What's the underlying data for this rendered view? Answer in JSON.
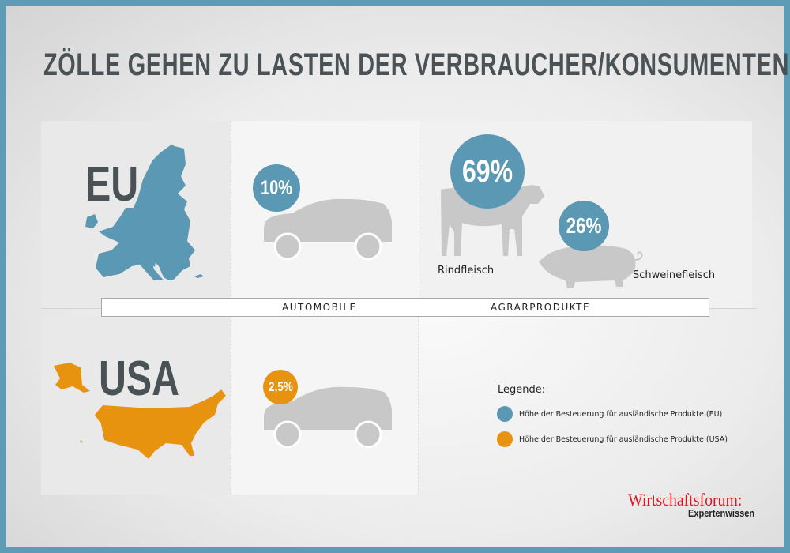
{
  "title": "ZÖLLE GEHEN ZU LASTEN DER VERBRAUCHER/KONSUMENTEN",
  "regions": {
    "eu": "EU",
    "usa": "USA"
  },
  "categories": {
    "auto": "AUTOMOBILE",
    "agrar": "AGRARPRODUKTE"
  },
  "values": {
    "eu_auto": "10%",
    "eu_beef": "69%",
    "eu_pork": "26%",
    "usa_auto": "2,5%"
  },
  "products": {
    "beef": "Rindfleisch",
    "pork": "Schweinefleisch"
  },
  "legend": {
    "title": "Legende:",
    "items": [
      {
        "label": "Höhe der Besteuerung für ausländische Produkte (EU)",
        "color": "#5b98b3"
      },
      {
        "label": "Höhe der Besteuerung für ausländische Produkte (USA)",
        "color": "#e8930f"
      }
    ]
  },
  "logo": {
    "name": "Wirtschaftsforum:",
    "tagline": "Expertenwissen"
  },
  "colors": {
    "eu": "#5b98b3",
    "usa": "#e8930f",
    "frame": "#5e9bb5",
    "silhouette": "#c8c8c8"
  }
}
